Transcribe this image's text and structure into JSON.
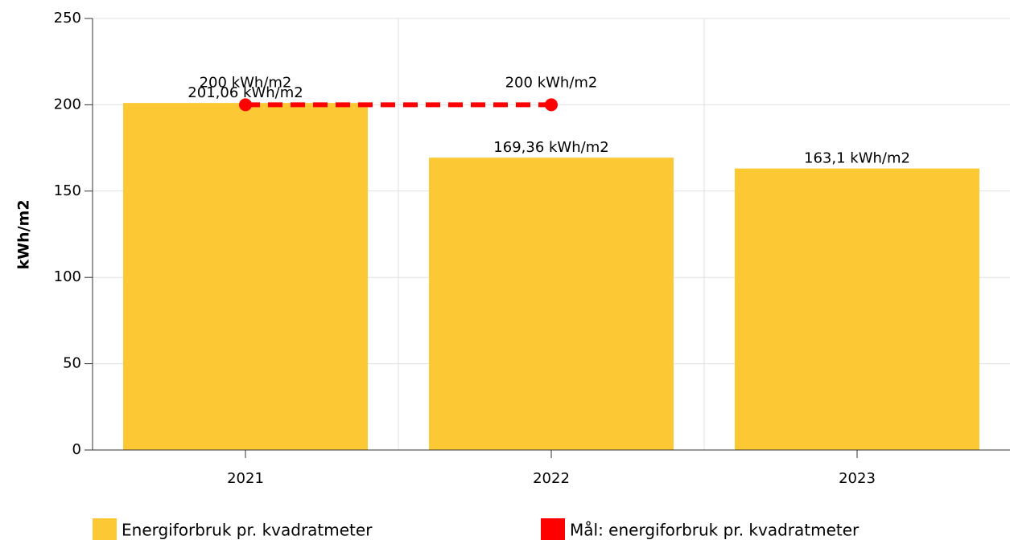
{
  "chart_data": {
    "type": "bar",
    "categories": [
      "2021",
      "2022",
      "2023"
    ],
    "y_label": "kWh/m2",
    "ylim": [
      0,
      250
    ],
    "yticks": [
      0,
      50,
      100,
      150,
      200,
      250
    ],
    "grid": true,
    "legend": "bottom",
    "series": [
      {
        "name": "Energiforbruk pr. kvadratmeter",
        "type": "bar",
        "color": "#fcc934",
        "values": [
          201.06,
          169.36,
          163.1
        ],
        "value_labels": [
          "201,06 kWh/m2",
          "169,36 kWh/m2",
          "163,1 kWh/m2"
        ]
      },
      {
        "name": "Mål: energiforbruk pr. kvadratmeter",
        "type": "line",
        "color": "#ff0000",
        "dashed": true,
        "values": [
          200,
          200,
          null
        ],
        "value_labels": [
          "200 kWh/m2",
          "200 kWh/m2",
          null
        ]
      }
    ]
  }
}
